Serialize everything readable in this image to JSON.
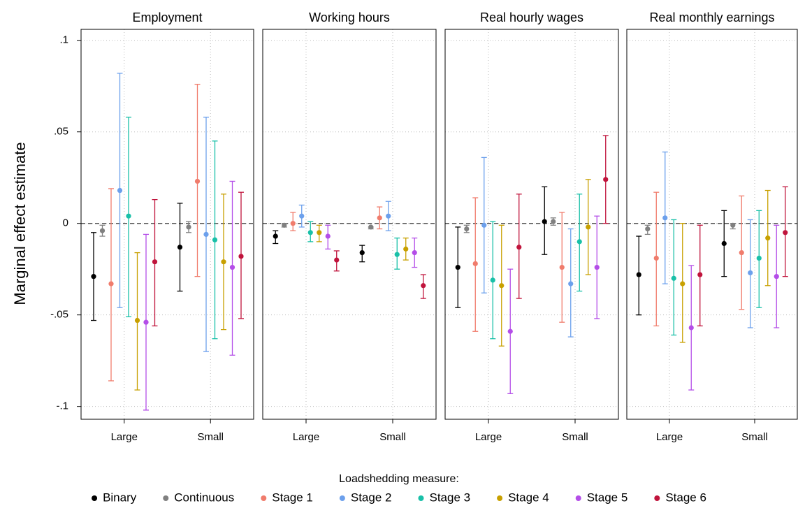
{
  "chart_data": {
    "type": "errorbar",
    "ylabel": "Marginal effect estimate",
    "legend_title": "Loadshedding measure:",
    "categories": [
      "Large",
      "Small"
    ],
    "ylim": [
      -0.107,
      0.106
    ],
    "yticks": [
      {
        "value": 0.1,
        "label": ".1"
      },
      {
        "value": 0.05,
        "label": ".05"
      },
      0,
      {
        "value": -0.05,
        "label": "-.05"
      },
      {
        "value": -0.1,
        "label": "-.1"
      }
    ],
    "grid": true,
    "refline": 0,
    "series": [
      {
        "name": "Binary",
        "color": "#000000"
      },
      {
        "name": "Continuous",
        "color": "#808080"
      },
      {
        "name": "Stage 1",
        "color": "#f07c6c"
      },
      {
        "name": "Stage 2",
        "color": "#6ca0ec"
      },
      {
        "name": "Stage 3",
        "color": "#19c0a8"
      },
      {
        "name": "Stage 4",
        "color": "#c8a000"
      },
      {
        "name": "Stage 5",
        "color": "#b44ee8"
      },
      {
        "name": "Stage 6",
        "color": "#c0143c"
      }
    ],
    "panels": [
      {
        "title": "Employment",
        "values": [
          [
            -0.029,
            -0.013
          ],
          [
            -0.004,
            -0.002
          ],
          [
            -0.033,
            0.023
          ],
          [
            0.018,
            -0.006
          ],
          [
            0.004,
            -0.009
          ],
          [
            -0.053,
            -0.021
          ],
          [
            -0.054,
            -0.024
          ],
          [
            -0.021,
            -0.018
          ]
        ],
        "lower": [
          [
            -0.053,
            -0.037
          ],
          [
            -0.007,
            -0.005
          ],
          [
            -0.086,
            -0.029
          ],
          [
            -0.046,
            -0.07
          ],
          [
            -0.051,
            -0.063
          ],
          [
            -0.091,
            -0.058
          ],
          [
            -0.102,
            -0.072
          ],
          [
            -0.056,
            -0.052
          ]
        ],
        "upper": [
          [
            -0.005,
            0.011
          ],
          [
            -0.001,
            0.001
          ],
          [
            0.019,
            0.076
          ],
          [
            0.082,
            0.058
          ],
          [
            0.058,
            0.045
          ],
          [
            -0.016,
            0.016
          ],
          [
            -0.006,
            0.023
          ],
          [
            0.013,
            0.017
          ]
        ]
      },
      {
        "title": "Working hours",
        "values": [
          [
            -0.007,
            -0.016
          ],
          [
            -0.001,
            -0.002
          ],
          [
            0.0,
            0.003
          ],
          [
            0.004,
            0.004
          ],
          [
            -0.005,
            -0.017
          ],
          [
            -0.005,
            -0.014
          ],
          [
            -0.007,
            -0.016
          ],
          [
            -0.02,
            -0.034
          ]
        ],
        "lower": [
          [
            -0.011,
            -0.021
          ],
          [
            -0.002,
            -0.003
          ],
          [
            -0.004,
            -0.003
          ],
          [
            -0.002,
            -0.004
          ],
          [
            -0.01,
            -0.025
          ],
          [
            -0.01,
            -0.02
          ],
          [
            -0.014,
            -0.024
          ],
          [
            -0.026,
            -0.041
          ]
        ],
        "upper": [
          [
            -0.004,
            -0.012
          ],
          [
            0.0,
            -0.002
          ],
          [
            0.006,
            0.009
          ],
          [
            0.01,
            0.012
          ],
          [
            0.001,
            -0.008
          ],
          [
            -0.001,
            -0.008
          ],
          [
            -0.001,
            -0.008
          ],
          [
            -0.015,
            -0.028
          ]
        ]
      },
      {
        "title": "Real hourly wages",
        "values": [
          [
            -0.024,
            0.001
          ],
          [
            -0.003,
            0.001
          ],
          [
            -0.022,
            -0.024
          ],
          [
            -0.001,
            -0.033
          ],
          [
            -0.031,
            -0.01
          ],
          [
            -0.034,
            -0.002
          ],
          [
            -0.059,
            -0.024
          ],
          [
            -0.013,
            0.024
          ]
        ],
        "lower": [
          [
            -0.046,
            -0.017
          ],
          [
            -0.005,
            -0.001
          ],
          [
            -0.059,
            -0.054
          ],
          [
            -0.038,
            -0.062
          ],
          [
            -0.063,
            -0.037
          ],
          [
            -0.067,
            -0.028
          ],
          [
            -0.093,
            -0.052
          ],
          [
            -0.041,
            0.0
          ]
        ],
        "upper": [
          [
            -0.002,
            0.02
          ],
          [
            -0.001,
            0.003
          ],
          [
            0.014,
            0.006
          ],
          [
            0.036,
            -0.003
          ],
          [
            0.001,
            0.016
          ],
          [
            -0.001,
            0.024
          ],
          [
            -0.025,
            0.004
          ],
          [
            0.016,
            0.048
          ]
        ]
      },
      {
        "title": "Real monthly earnings",
        "values": [
          [
            -0.028,
            -0.011
          ],
          [
            -0.003,
            -0.001
          ],
          [
            -0.019,
            -0.016
          ],
          [
            0.003,
            -0.027
          ],
          [
            -0.03,
            -0.019
          ],
          [
            -0.033,
            -0.008
          ],
          [
            -0.057,
            -0.029
          ],
          [
            -0.028,
            -0.005
          ]
        ],
        "lower": [
          [
            -0.05,
            -0.029
          ],
          [
            -0.006,
            -0.003
          ],
          [
            -0.056,
            -0.047
          ],
          [
            -0.033,
            -0.057
          ],
          [
            -0.061,
            -0.046
          ],
          [
            -0.065,
            -0.034
          ],
          [
            -0.091,
            -0.057
          ],
          [
            -0.056,
            -0.029
          ]
        ],
        "upper": [
          [
            -0.007,
            0.007
          ],
          [
            -0.001,
            0.0
          ],
          [
            0.017,
            0.015
          ],
          [
            0.039,
            0.002
          ],
          [
            0.002,
            0.007
          ],
          [
            0.0,
            0.018
          ],
          [
            -0.023,
            -0.001
          ],
          [
            -0.001,
            0.02
          ]
        ]
      }
    ]
  }
}
